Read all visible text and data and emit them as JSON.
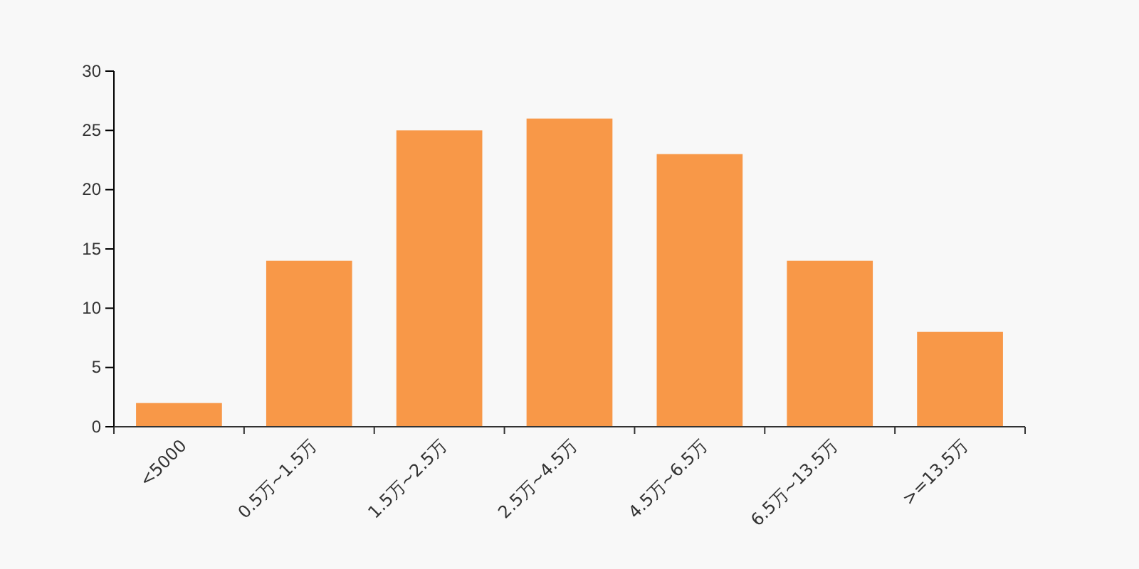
{
  "chart_data": {
    "type": "bar",
    "categories": [
      "<5000",
      "0.5万~1.5万",
      "1.5万~2.5万",
      "2.5万~4.5万",
      "4.5万~6.5万",
      "6.5万~13.5万",
      ">=13.5万"
    ],
    "values": [
      2,
      14,
      25,
      26,
      23,
      14,
      8
    ],
    "color": "#f89848",
    "ylim": [
      0,
      30
    ],
    "yticks": [
      0,
      5,
      10,
      15,
      20,
      25,
      30
    ],
    "grid": false
  }
}
